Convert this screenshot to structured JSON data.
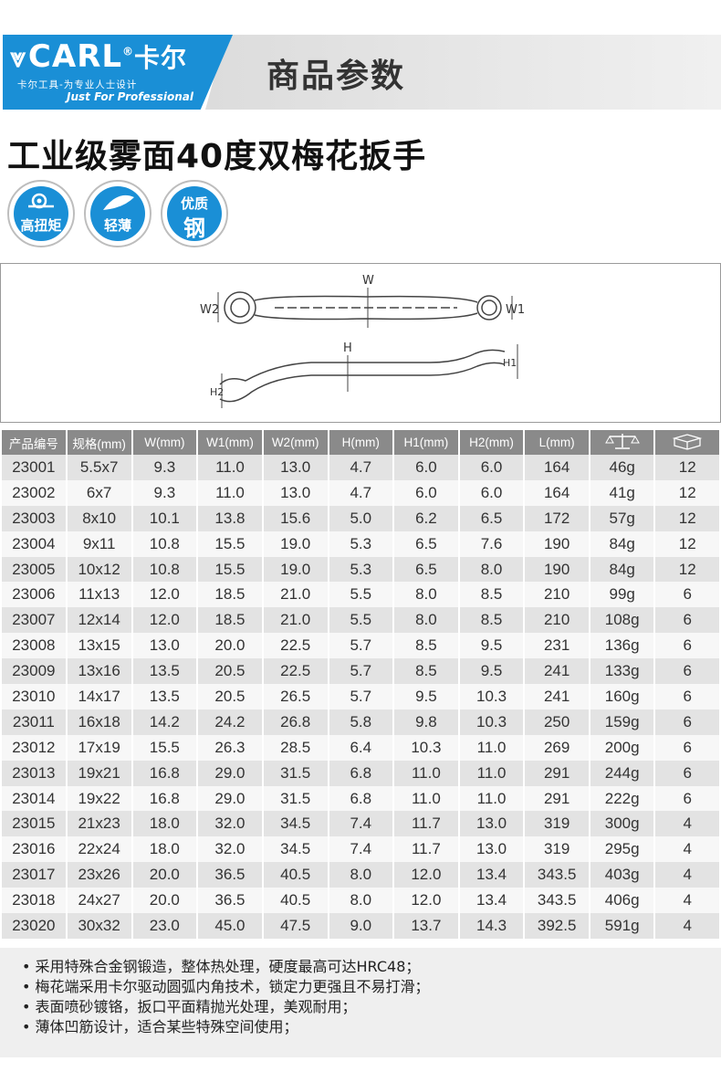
{
  "brand": {
    "logo_text": "CARL",
    "logo_cn": "卡尔",
    "reg_mark": "®",
    "tagline_cn": "卡尔工具-为专业人士设计",
    "slogan": "Just For Professional"
  },
  "banner_title": "商品参数",
  "product_title": "工业级雾面40度双梅花扳手",
  "badges": [
    {
      "line1": "高扭矩",
      "icon": "torque-icon"
    },
    {
      "line1": "轻薄",
      "icon": "leaf-icon"
    },
    {
      "line1": "优质",
      "line2": "钢"
    }
  ],
  "diagram_labels": {
    "w": "W",
    "w1": "W1",
    "w2": "W2",
    "h": "H",
    "h1": "H1",
    "h2": "H2"
  },
  "table": {
    "headers": [
      "产品编号",
      "规格(mm)",
      "W(mm)",
      "W1(mm)",
      "W2(mm)",
      "H(mm)",
      "H1(mm)",
      "H2(mm)",
      "L(mm)",
      "weight-scale-icon",
      "package-box-icon"
    ],
    "rows": [
      [
        "23001",
        "5.5x7",
        "9.3",
        "11.0",
        "13.0",
        "4.7",
        "6.0",
        "6.0",
        "164",
        "46g",
        "12"
      ],
      [
        "23002",
        "6x7",
        "9.3",
        "11.0",
        "13.0",
        "4.7",
        "6.0",
        "6.0",
        "164",
        "41g",
        "12"
      ],
      [
        "23003",
        "8x10",
        "10.1",
        "13.8",
        "15.6",
        "5.0",
        "6.2",
        "6.5",
        "172",
        "57g",
        "12"
      ],
      [
        "23004",
        "9x11",
        "10.8",
        "15.5",
        "19.0",
        "5.3",
        "6.5",
        "7.6",
        "190",
        "84g",
        "12"
      ],
      [
        "23005",
        "10x12",
        "10.8",
        "15.5",
        "19.0",
        "5.3",
        "6.5",
        "8.0",
        "190",
        "84g",
        "12"
      ],
      [
        "23006",
        "11x13",
        "12.0",
        "18.5",
        "21.0",
        "5.5",
        "8.0",
        "8.5",
        "210",
        "99g",
        "6"
      ],
      [
        "23007",
        "12x14",
        "12.0",
        "18.5",
        "21.0",
        "5.5",
        "8.0",
        "8.5",
        "210",
        "108g",
        "6"
      ],
      [
        "23008",
        "13x15",
        "13.0",
        "20.0",
        "22.5",
        "5.7",
        "8.5",
        "9.5",
        "231",
        "136g",
        "6"
      ],
      [
        "23009",
        "13x16",
        "13.5",
        "20.5",
        "22.5",
        "5.7",
        "8.5",
        "9.5",
        "241",
        "133g",
        "6"
      ],
      [
        "23010",
        "14x17",
        "13.5",
        "20.5",
        "26.5",
        "5.7",
        "9.5",
        "10.3",
        "241",
        "160g",
        "6"
      ],
      [
        "23011",
        "16x18",
        "14.2",
        "24.2",
        "26.8",
        "5.8",
        "9.8",
        "10.3",
        "250",
        "159g",
        "6"
      ],
      [
        "23012",
        "17x19",
        "15.5",
        "26.3",
        "28.5",
        "6.4",
        "10.3",
        "11.0",
        "269",
        "200g",
        "6"
      ],
      [
        "23013",
        "19x21",
        "16.8",
        "29.0",
        "31.5",
        "6.8",
        "11.0",
        "11.0",
        "291",
        "244g",
        "6"
      ],
      [
        "23014",
        "19x22",
        "16.8",
        "29.0",
        "31.5",
        "6.8",
        "11.0",
        "11.0",
        "291",
        "222g",
        "6"
      ],
      [
        "23015",
        "21x23",
        "18.0",
        "32.0",
        "34.5",
        "7.4",
        "11.7",
        "13.0",
        "319",
        "300g",
        "4"
      ],
      [
        "23016",
        "22x24",
        "18.0",
        "32.0",
        "34.5",
        "7.4",
        "11.7",
        "13.0",
        "319",
        "295g",
        "4"
      ],
      [
        "23017",
        "23x26",
        "20.0",
        "36.5",
        "40.5",
        "8.0",
        "12.0",
        "13.4",
        "343.5",
        "403g",
        "4"
      ],
      [
        "23018",
        "24x27",
        "20.0",
        "36.5",
        "40.5",
        "8.0",
        "12.0",
        "13.4",
        "343.5",
        "406g",
        "4"
      ],
      [
        "23020",
        "30x32",
        "23.0",
        "45.0",
        "47.5",
        "9.0",
        "13.7",
        "14.3",
        "392.5",
        "591g",
        "4"
      ]
    ]
  },
  "notes": [
    "• 采用特殊合金钢锻造，整体热处理，硬度最高可达HRC48；",
    "• 梅花端采用卡尔驱动圆弧内角技术，锁定力更强且不易打滑；",
    "• 表面喷砂镀铬，扳口平面精抛光处理，美观耐用；",
    "• 薄体凹筋设计，适合某些特殊空间使用；"
  ],
  "colors": {
    "brand_blue": "#1a8fd6",
    "header_gray": "#8a8a8a",
    "row_odd": "#e3e3e3",
    "row_even": "#f7f7f7"
  }
}
